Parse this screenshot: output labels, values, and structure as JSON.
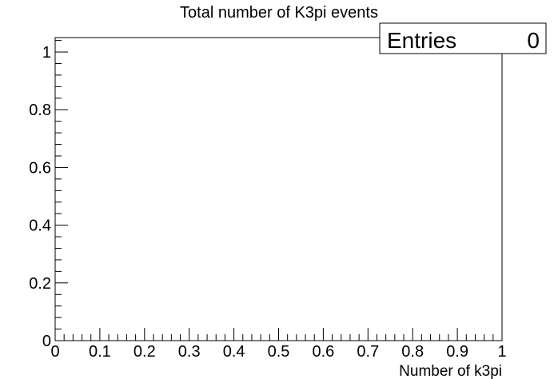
{
  "chart_data": {
    "type": "bar",
    "title": "Total number of K3pi events",
    "xlabel": "Number of k3pi",
    "ylabel": "",
    "xlim": [
      0,
      1
    ],
    "ylim": [
      0,
      1.05
    ],
    "x_ticks": [
      "0",
      "0.1",
      "0.2",
      "0.3",
      "0.4",
      "0.5",
      "0.6",
      "0.7",
      "0.8",
      "0.9",
      "1"
    ],
    "y_ticks": [
      "0",
      "0.2",
      "0.4",
      "0.6",
      "0.8",
      "1"
    ],
    "values": [],
    "grid": false
  },
  "stats_box": {
    "label": "Entries",
    "value": "0"
  }
}
